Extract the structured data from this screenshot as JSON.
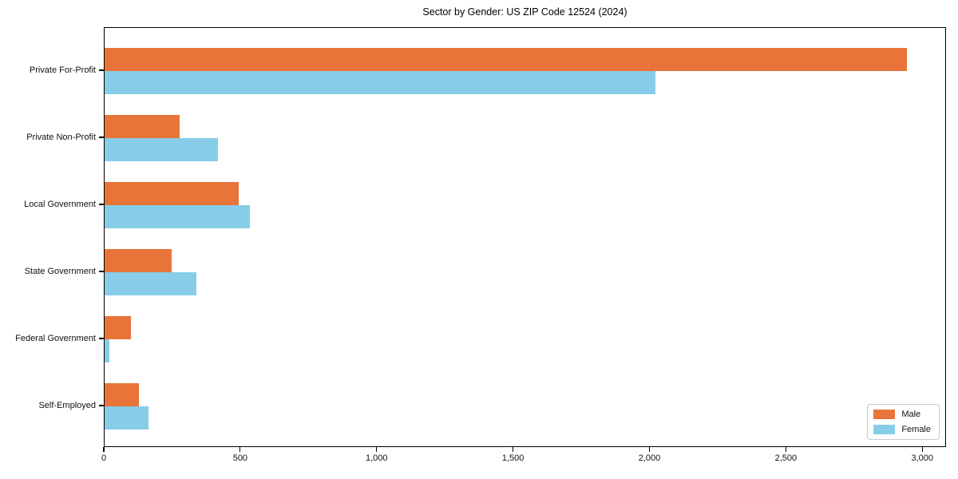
{
  "chart_data": {
    "type": "bar",
    "orientation": "horizontal",
    "title": "Sector by Gender: US ZIP Code 12524 (2024)",
    "categories": [
      "Private For-Profit",
      "Private Non-Profit",
      "Local Government",
      "State Government",
      "Federal Government",
      "Self-Employed"
    ],
    "series": [
      {
        "name": "Male",
        "color": "#e8743a",
        "values": [
          2940,
          275,
          490,
          245,
          95,
          125
        ]
      },
      {
        "name": "Female",
        "color": "#87cde8",
        "values": [
          2020,
          415,
          533,
          335,
          18,
          160
        ]
      }
    ],
    "xlabel": "",
    "ylabel": "",
    "xlim": [
      0,
      3087
    ],
    "x_ticks": [
      0,
      500,
      1000,
      1500,
      2000,
      2500,
      3000
    ],
    "x_tick_labels": [
      "0",
      "500",
      "1,000",
      "1,500",
      "2,000",
      "2,500",
      "3,000"
    ],
    "grid": false,
    "legend_position": "lower right",
    "axis_color": "#000000",
    "background_color": "#ffffff"
  }
}
